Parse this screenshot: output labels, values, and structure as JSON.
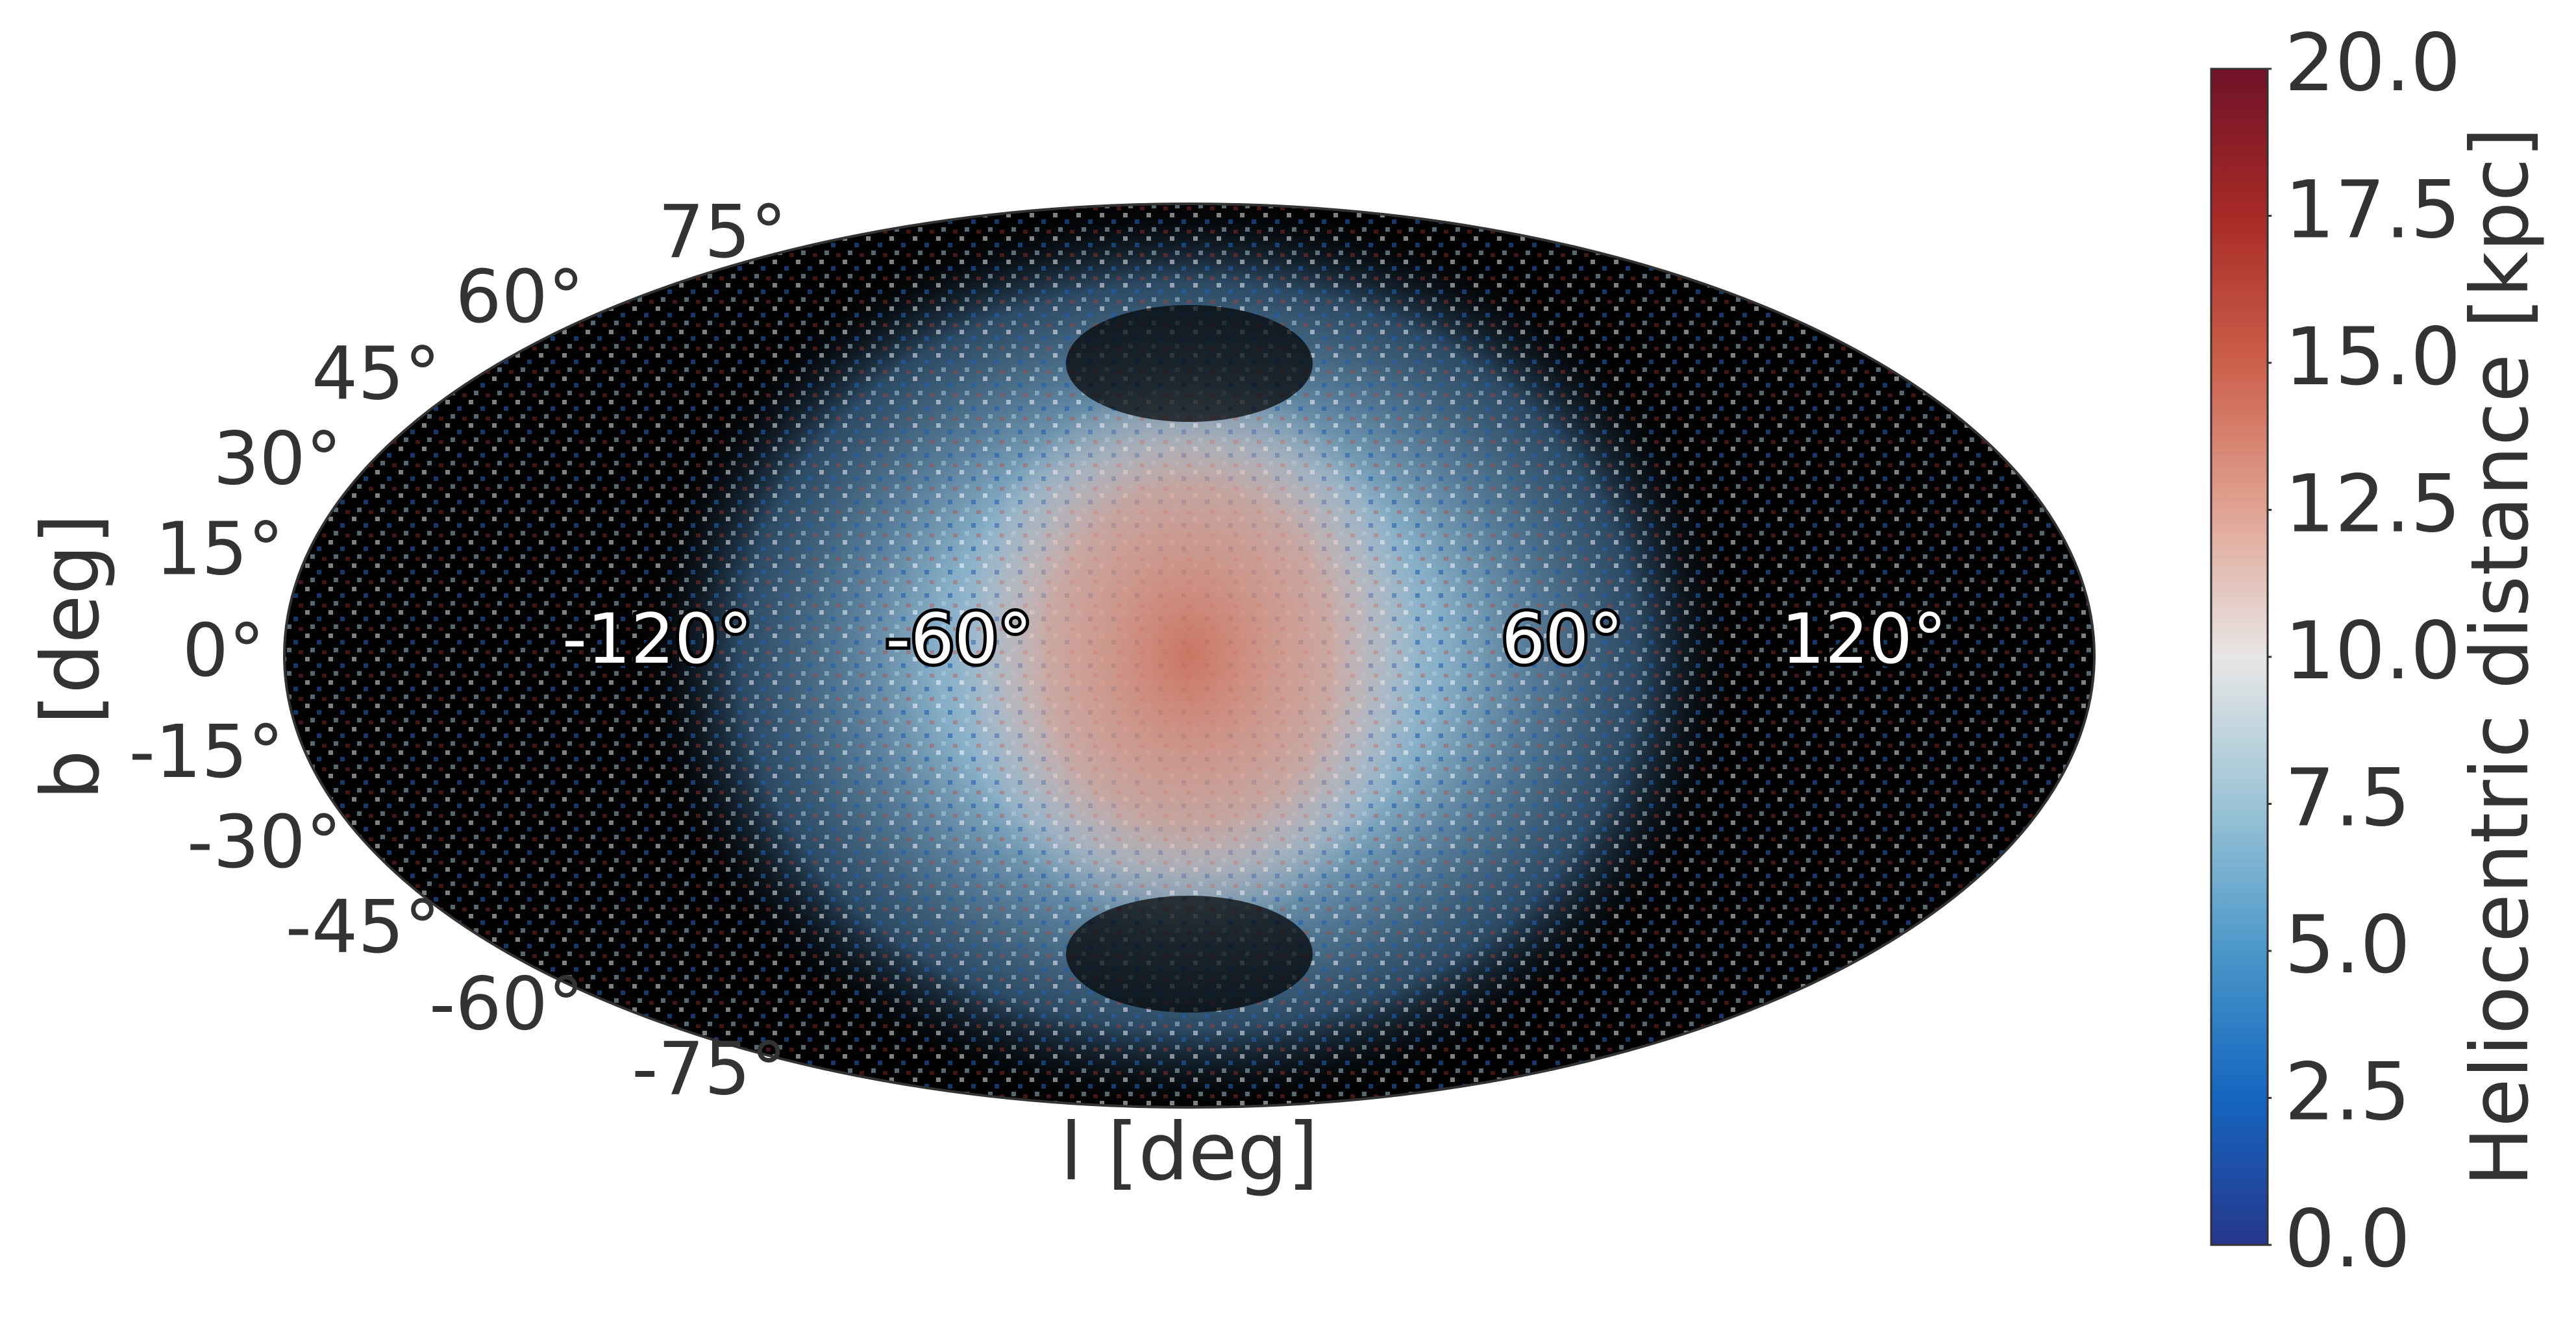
{
  "chart_data": {
    "type": "mollweide-scatter",
    "xlabel": "l [deg]",
    "ylabel": "b [deg]",
    "xlim": [
      -180,
      180
    ],
    "ylim": [
      -90,
      90
    ],
    "xticks": [
      {
        "value": -120,
        "label": "-120°"
      },
      {
        "value": -60,
        "label": "-60°"
      },
      {
        "value": 60,
        "label": "60°"
      },
      {
        "value": 120,
        "label": "120°"
      }
    ],
    "yticks": [
      {
        "value": 75,
        "label": "75°"
      },
      {
        "value": 60,
        "label": "60°"
      },
      {
        "value": 45,
        "label": "45°"
      },
      {
        "value": 30,
        "label": "30°"
      },
      {
        "value": 15,
        "label": "15°"
      },
      {
        "value": 0,
        "label": "0°"
      },
      {
        "value": -15,
        "label": "-15°"
      },
      {
        "value": -30,
        "label": "-30°"
      },
      {
        "value": -45,
        "label": "-45°"
      },
      {
        "value": -60,
        "label": "-60°"
      },
      {
        "value": -75,
        "label": "-75°"
      }
    ],
    "colorbar": {
      "label": "Heliocentric distance [kpc]",
      "lim": [
        0,
        20
      ],
      "ticks": [
        {
          "value": 0,
          "label": "0.0"
        },
        2.5,
        {
          "value": 5,
          "label": "5.0"
        },
        7.5,
        {
          "value": 10,
          "label": "10.0"
        },
        12.5,
        {
          "value": 15,
          "label": "15.0"
        },
        17.5,
        {
          "value": 20,
          "label": "20.0"
        }
      ],
      "colormap": [
        "#26378c",
        "#1565c0",
        "#4b97c9",
        "#9cc4d6",
        "#e8e6e6",
        "#e0a392",
        "#cc5f4a",
        "#a82a26",
        "#6f1228"
      ]
    }
  }
}
